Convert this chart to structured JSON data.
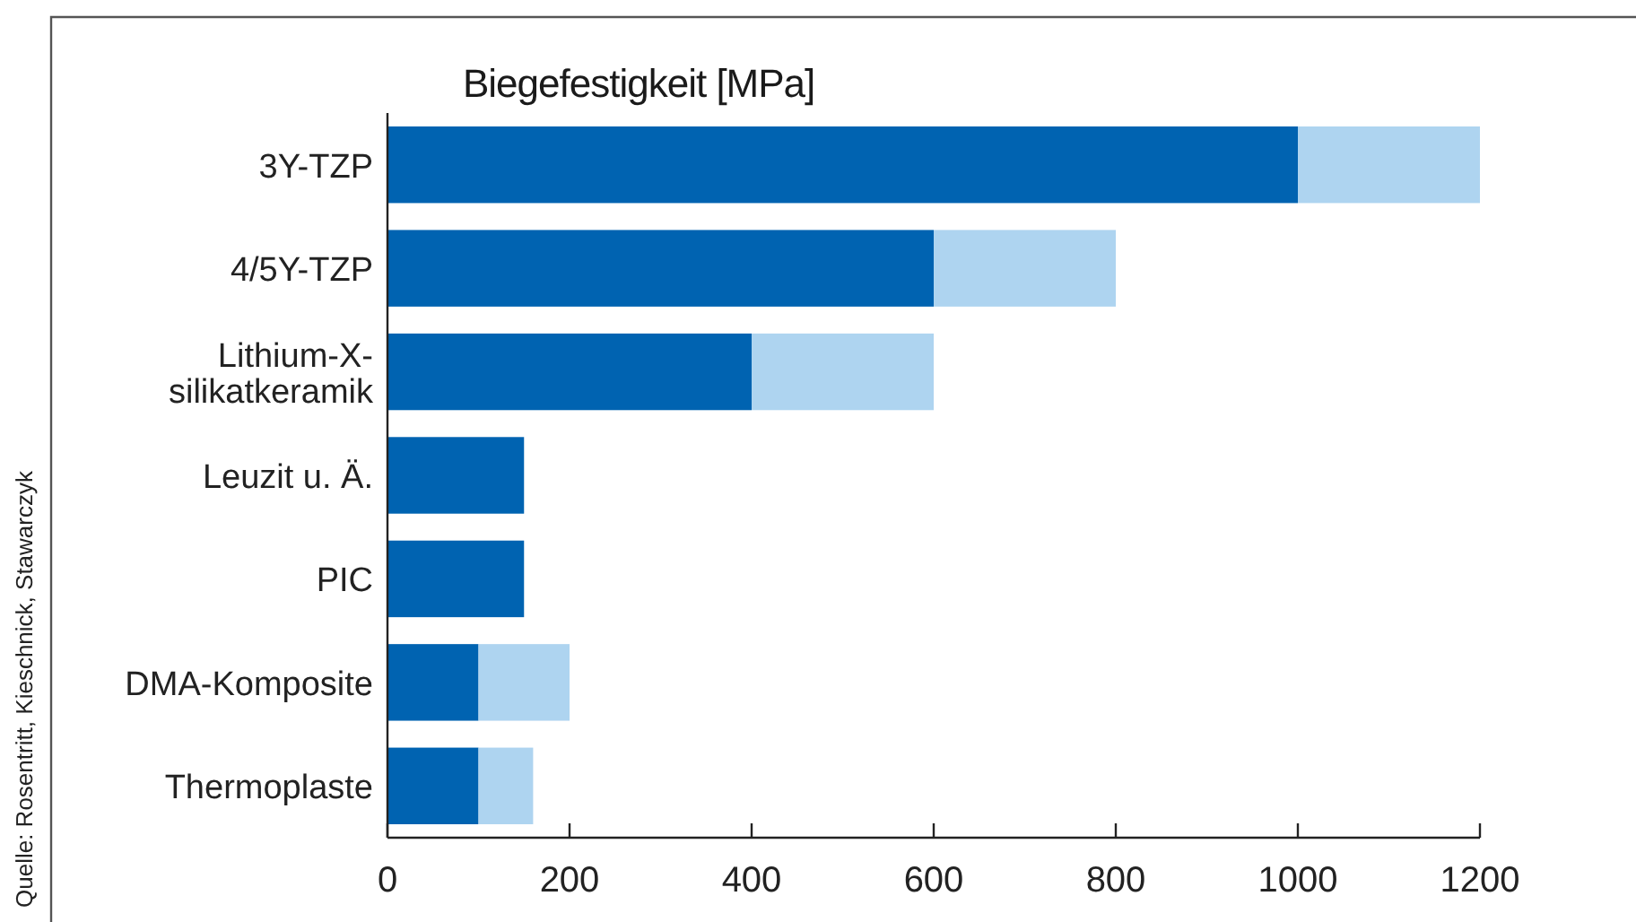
{
  "chart_data": {
    "type": "bar",
    "orientation": "horizontal",
    "stacked": true,
    "title": "Biegefestigkeit [MPa]",
    "categories": [
      "3Y-TZP",
      "4/5Y-TZP",
      "Lithium-X-\nsilikatkeramik",
      "Leuzit u. Ä.",
      "PIC",
      "DMA-Komposite",
      "Thermoplaste"
    ],
    "series": [
      {
        "color": "#0063b1",
        "values": [
          1000,
          600,
          400,
          150,
          150,
          100,
          100
        ]
      },
      {
        "color": "#aed4f0",
        "values": [
          200,
          200,
          200,
          null,
          null,
          100,
          60
        ]
      }
    ],
    "xlim": [
      0,
      1200
    ],
    "xticks": [
      0,
      200,
      400,
      600,
      800,
      1000,
      1200
    ],
    "grid": false,
    "annotations": [
      "Quelle: Rosentritt, Kieschnick, Stawarczyk"
    ]
  }
}
